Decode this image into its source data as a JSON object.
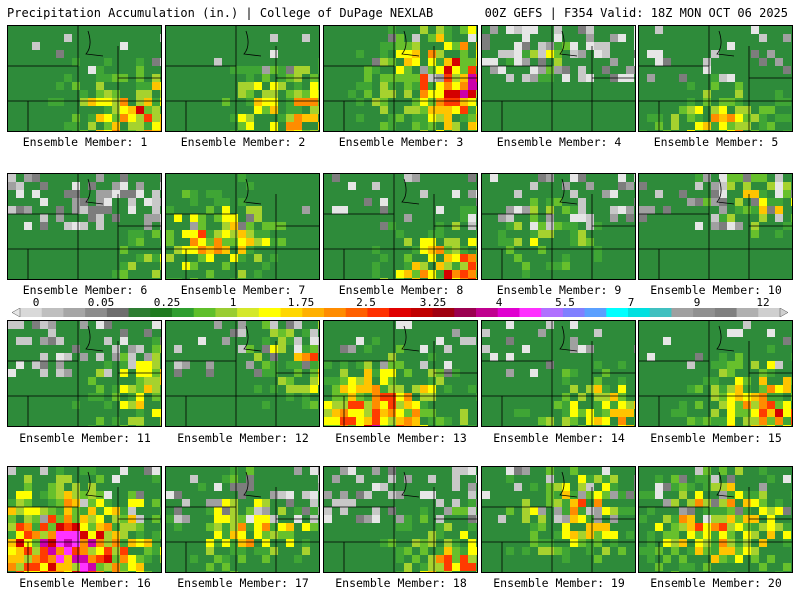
{
  "header": {
    "title_left": "Precipitation Accumulation (in.) | College of DuPage NEXLAB",
    "title_right": "00Z GEFS | F354 Valid: 18Z MON OCT 06 2025"
  },
  "colorbar": {
    "tick_labels": [
      "0",
      "0.05",
      "0.25",
      "1",
      "1.75",
      "2.5",
      "3.25",
      "4",
      "5.5",
      "7",
      "9",
      "12"
    ],
    "colors": [
      "#d9d9d9",
      "#bfbfbf",
      "#a6a6a6",
      "#8c8c8c",
      "#6e6e6e",
      "#2e7d32",
      "#1f7a1f",
      "#2f9e2f",
      "#5fbf2a",
      "#9acd32",
      "#d4e82a",
      "#ffff00",
      "#ffd700",
      "#ffb000",
      "#ff8c00",
      "#ff6000",
      "#ff3000",
      "#e00000",
      "#c00000",
      "#a00010",
      "#9b0050",
      "#c0008f",
      "#e000d0",
      "#ff30ff",
      "#b070ff",
      "#8080ff",
      "#5aa0ff",
      "#00ffff",
      "#00e0e0",
      "#40c0c0",
      "#a0a0a0",
      "#909090",
      "#808080",
      "#b0b0b0",
      "#cfcfcf"
    ]
  },
  "members": [
    {
      "label": "Ensemble Member: 1"
    },
    {
      "label": "Ensemble Member: 2"
    },
    {
      "label": "Ensemble Member: 3"
    },
    {
      "label": "Ensemble Member: 4"
    },
    {
      "label": "Ensemble Member: 5"
    },
    {
      "label": "Ensemble Member: 6"
    },
    {
      "label": "Ensemble Member: 7"
    },
    {
      "label": "Ensemble Member: 8"
    },
    {
      "label": "Ensemble Member: 9"
    },
    {
      "label": "Ensemble Member: 10"
    },
    {
      "label": "Ensemble Member: 11"
    },
    {
      "label": "Ensemble Member: 12"
    },
    {
      "label": "Ensemble Member: 13"
    },
    {
      "label": "Ensemble Member: 14"
    },
    {
      "label": "Ensemble Member: 15"
    },
    {
      "label": "Ensemble Member: 16"
    },
    {
      "label": "Ensemble Member: 17"
    },
    {
      "label": "Ensemble Member: 18"
    },
    {
      "label": "Ensemble Member: 19"
    },
    {
      "label": "Ensemble Member: 20"
    }
  ]
}
